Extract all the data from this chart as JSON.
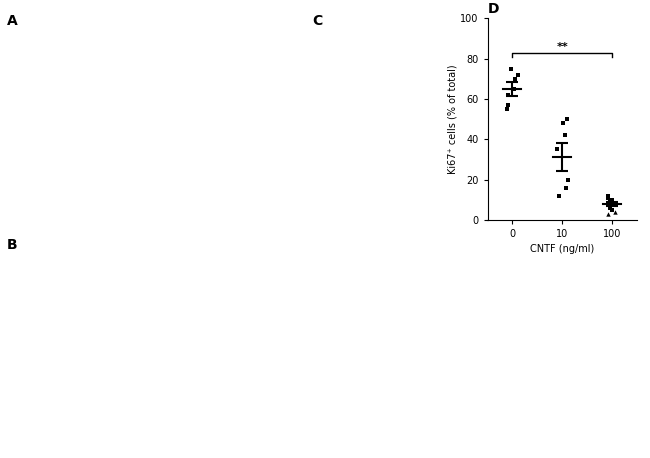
{
  "title": "D",
  "xlabel": "CNTF (ng/ml)",
  "ylabel": "Ki67⁺ cells (% of total)",
  "xtick_labels": [
    "0",
    "10",
    "100"
  ],
  "xtick_positions": [
    0,
    1,
    2
  ],
  "ylim": [
    0,
    100
  ],
  "yticks": [
    0,
    20,
    40,
    60,
    80,
    100
  ],
  "data_0": [
    75,
    72,
    70,
    65,
    62,
    57,
    55
  ],
  "data_10": [
    50,
    48,
    42,
    35,
    20,
    16,
    12
  ],
  "data_100": [
    12,
    11,
    10,
    10,
    9,
    9,
    8,
    8,
    7,
    6,
    5,
    4,
    3
  ],
  "mean_0": 65,
  "mean_10": 31,
  "mean_100": 8,
  "sem_0": 3.5,
  "sem_10": 7,
  "sem_100": 1,
  "scatter_color": "#000000",
  "error_color": "#000000",
  "significance_line_y": 83,
  "sig_text": "**",
  "sig_x1": 0,
  "sig_x2": 2,
  "background_color": "#ffffff"
}
